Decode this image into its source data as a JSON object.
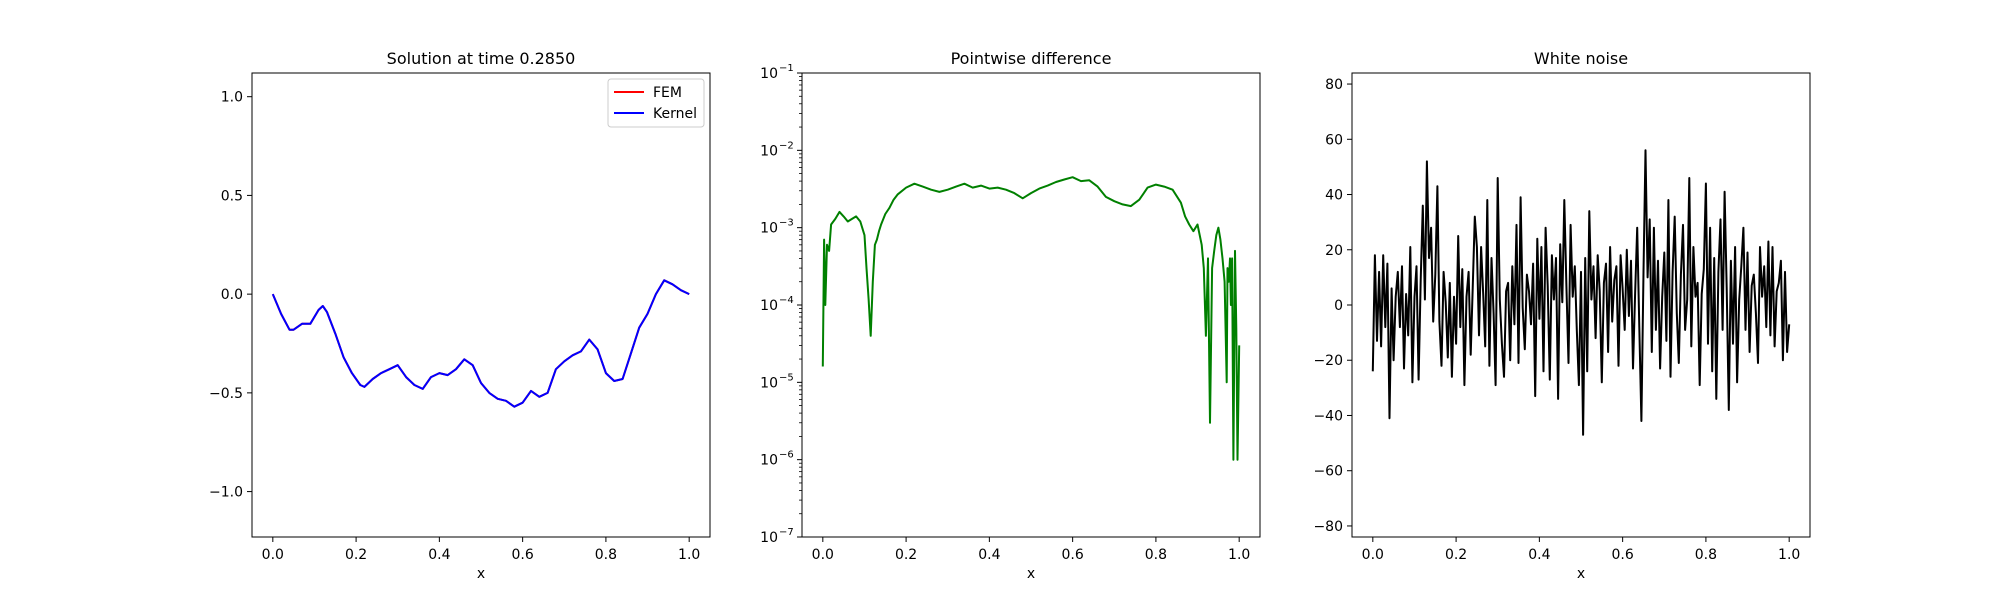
{
  "chart_data": [
    {
      "type": "line",
      "title": "Solution at time 0.2850",
      "xlabel": "x",
      "ylabel": "",
      "xlim": [
        -0.05,
        1.05
      ],
      "ylim": [
        -1.23,
        1.12
      ],
      "yscale": "linear",
      "xticks": [
        0.0,
        0.2,
        0.4,
        0.6,
        0.8,
        1.0
      ],
      "xtick_labels": [
        "0.0",
        "0.2",
        "0.4",
        "0.6",
        "0.8",
        "1.0"
      ],
      "yticks": [
        1.0,
        0.5,
        0.0,
        -0.5,
        -1.0
      ],
      "ytick_labels": [
        "1.0",
        "0.5",
        "0.0",
        "−0.5",
        "−1.0"
      ],
      "legend": "upper right",
      "grid": false,
      "series": [
        {
          "name": "FEM",
          "color": "#ff0000",
          "x": [
            0.0,
            0.02,
            0.04,
            0.05,
            0.07,
            0.09,
            0.11,
            0.12,
            0.13,
            0.15,
            0.17,
            0.19,
            0.21,
            0.22,
            0.24,
            0.26,
            0.28,
            0.3,
            0.32,
            0.34,
            0.36,
            0.38,
            0.4,
            0.42,
            0.44,
            0.46,
            0.48,
            0.5,
            0.52,
            0.54,
            0.56,
            0.58,
            0.6,
            0.62,
            0.64,
            0.66,
            0.68,
            0.7,
            0.72,
            0.74,
            0.76,
            0.78,
            0.8,
            0.82,
            0.84,
            0.86,
            0.88,
            0.9,
            0.92,
            0.94,
            0.96,
            0.98,
            1.0
          ],
          "y": [
            0.0,
            -0.1,
            -0.18,
            -0.18,
            -0.15,
            -0.15,
            -0.08,
            -0.06,
            -0.09,
            -0.2,
            -0.32,
            -0.4,
            -0.46,
            -0.47,
            -0.43,
            -0.4,
            -0.38,
            -0.36,
            -0.42,
            -0.46,
            -0.48,
            -0.42,
            -0.4,
            -0.41,
            -0.38,
            -0.33,
            -0.36,
            -0.45,
            -0.5,
            -0.53,
            -0.54,
            -0.57,
            -0.55,
            -0.49,
            -0.52,
            -0.5,
            -0.38,
            -0.34,
            -0.31,
            -0.29,
            -0.23,
            -0.28,
            -0.4,
            -0.44,
            -0.43,
            -0.3,
            -0.17,
            -0.1,
            0.0,
            0.07,
            0.05,
            0.02,
            0.0
          ]
        },
        {
          "name": "Kernel",
          "color": "#0000ff",
          "x": [
            0.0,
            0.02,
            0.04,
            0.05,
            0.07,
            0.09,
            0.11,
            0.12,
            0.13,
            0.15,
            0.17,
            0.19,
            0.21,
            0.22,
            0.24,
            0.26,
            0.28,
            0.3,
            0.32,
            0.34,
            0.36,
            0.38,
            0.4,
            0.42,
            0.44,
            0.46,
            0.48,
            0.5,
            0.52,
            0.54,
            0.56,
            0.58,
            0.6,
            0.62,
            0.64,
            0.66,
            0.68,
            0.7,
            0.72,
            0.74,
            0.76,
            0.78,
            0.8,
            0.82,
            0.84,
            0.86,
            0.88,
            0.9,
            0.92,
            0.94,
            0.96,
            0.98,
            1.0
          ],
          "y": [
            0.0,
            -0.1,
            -0.18,
            -0.18,
            -0.15,
            -0.15,
            -0.08,
            -0.06,
            -0.09,
            -0.2,
            -0.32,
            -0.4,
            -0.46,
            -0.47,
            -0.43,
            -0.4,
            -0.38,
            -0.36,
            -0.42,
            -0.46,
            -0.48,
            -0.42,
            -0.4,
            -0.41,
            -0.38,
            -0.33,
            -0.36,
            -0.45,
            -0.5,
            -0.53,
            -0.54,
            -0.57,
            -0.55,
            -0.49,
            -0.52,
            -0.5,
            -0.38,
            -0.34,
            -0.31,
            -0.29,
            -0.23,
            -0.28,
            -0.4,
            -0.44,
            -0.43,
            -0.3,
            -0.17,
            -0.1,
            0.0,
            0.07,
            0.05,
            0.02,
            0.0
          ]
        }
      ]
    },
    {
      "type": "line",
      "title": "Pointwise difference",
      "xlabel": "x",
      "ylabel": "",
      "xlim": [
        -0.05,
        1.05
      ],
      "ylim": [
        1e-07,
        0.1
      ],
      "yscale": "log",
      "xticks": [
        0.0,
        0.2,
        0.4,
        0.6,
        0.8,
        1.0
      ],
      "xtick_labels": [
        "0.0",
        "0.2",
        "0.4",
        "0.6",
        "0.8",
        "1.0"
      ],
      "ytick_exponents": [
        -1,
        -2,
        -3,
        -4,
        -5,
        -6,
        -7
      ],
      "ytick_base": "10",
      "grid": false,
      "series": [
        {
          "color": "#008000",
          "x": [
            0.0,
            0.003,
            0.006,
            0.01,
            0.015,
            0.02,
            0.03,
            0.04,
            0.05,
            0.06,
            0.07,
            0.08,
            0.09,
            0.1,
            0.105,
            0.11,
            0.115,
            0.12,
            0.125,
            0.13,
            0.135,
            0.14,
            0.15,
            0.16,
            0.17,
            0.18,
            0.2,
            0.22,
            0.24,
            0.26,
            0.28,
            0.3,
            0.32,
            0.34,
            0.36,
            0.38,
            0.4,
            0.42,
            0.44,
            0.46,
            0.48,
            0.5,
            0.52,
            0.54,
            0.56,
            0.58,
            0.6,
            0.62,
            0.64,
            0.66,
            0.68,
            0.7,
            0.72,
            0.74,
            0.76,
            0.78,
            0.8,
            0.82,
            0.84,
            0.86,
            0.87,
            0.88,
            0.89,
            0.9,
            0.91,
            0.915,
            0.92,
            0.925,
            0.93,
            0.935,
            0.94,
            0.945,
            0.95,
            0.955,
            0.96,
            0.965,
            0.97,
            0.972,
            0.975,
            0.978,
            0.98,
            0.983,
            0.986,
            0.99,
            0.993,
            0.996,
            1.0
          ],
          "y": [
            1.6e-05,
            0.0007,
            0.0001,
            0.0006,
            0.0005,
            0.0011,
            0.0013,
            0.0016,
            0.0014,
            0.0012,
            0.0013,
            0.0014,
            0.0012,
            0.0008,
            0.0003,
            0.00012,
            4e-05,
            0.0002,
            0.0006,
            0.0007,
            0.0009,
            0.0011,
            0.0015,
            0.0018,
            0.0023,
            0.0027,
            0.0033,
            0.0037,
            0.0034,
            0.0031,
            0.0029,
            0.0031,
            0.0034,
            0.0037,
            0.0033,
            0.0035,
            0.0032,
            0.0033,
            0.0031,
            0.0028,
            0.0024,
            0.0028,
            0.0032,
            0.0035,
            0.0039,
            0.0042,
            0.0045,
            0.004,
            0.0041,
            0.0034,
            0.0025,
            0.0022,
            0.002,
            0.0019,
            0.0023,
            0.0033,
            0.0036,
            0.0034,
            0.0031,
            0.0021,
            0.0014,
            0.0011,
            0.0009,
            0.0011,
            0.0006,
            0.0003,
            4e-05,
            0.0004,
            3e-06,
            0.0003,
            0.0005,
            0.0008,
            0.001,
            0.0007,
            0.0004,
            0.0002,
            1e-05,
            0.0003,
            0.0002,
            0.0004,
            0.0001,
            0.0004,
            1e-06,
            0.0005,
            5e-05,
            1e-06,
            3e-05
          ]
        }
      ]
    },
    {
      "type": "line",
      "title": "White noise",
      "xlabel": "x",
      "ylabel": "",
      "xlim": [
        -0.05,
        1.05
      ],
      "ylim": [
        -84,
        84
      ],
      "yscale": "linear",
      "xticks": [
        0.0,
        0.2,
        0.4,
        0.6,
        0.8,
        1.0
      ],
      "xtick_labels": [
        "0.0",
        "0.2",
        "0.4",
        "0.6",
        "0.8",
        "1.0"
      ],
      "yticks": [
        80,
        60,
        40,
        20,
        0,
        -20,
        -40,
        -60,
        -80
      ],
      "ytick_labels": [
        "80",
        "60",
        "40",
        "20",
        "0",
        "−20",
        "−40",
        "−60",
        "−80"
      ],
      "grid": false,
      "series": [
        {
          "color": "#000000",
          "x": [
            0.0,
            0.005,
            0.01,
            0.015,
            0.02,
            0.025,
            0.03,
            0.035,
            0.04,
            0.045,
            0.05,
            0.055,
            0.06,
            0.065,
            0.07,
            0.075,
            0.08,
            0.085,
            0.09,
            0.095,
            0.1,
            0.105,
            0.11,
            0.115,
            0.12,
            0.125,
            0.13,
            0.135,
            0.14,
            0.145,
            0.15,
            0.155,
            0.16,
            0.165,
            0.17,
            0.175,
            0.18,
            0.185,
            0.19,
            0.195,
            0.2,
            0.205,
            0.21,
            0.215,
            0.22,
            0.225,
            0.23,
            0.235,
            0.24,
            0.245,
            0.25,
            0.255,
            0.26,
            0.265,
            0.27,
            0.275,
            0.28,
            0.285,
            0.29,
            0.295,
            0.3,
            0.305,
            0.31,
            0.315,
            0.32,
            0.325,
            0.33,
            0.335,
            0.34,
            0.345,
            0.35,
            0.355,
            0.36,
            0.365,
            0.37,
            0.375,
            0.38,
            0.385,
            0.39,
            0.395,
            0.4,
            0.405,
            0.41,
            0.415,
            0.42,
            0.425,
            0.43,
            0.435,
            0.44,
            0.445,
            0.45,
            0.455,
            0.46,
            0.465,
            0.47,
            0.475,
            0.48,
            0.485,
            0.49,
            0.495,
            0.5,
            0.505,
            0.51,
            0.515,
            0.52,
            0.525,
            0.53,
            0.535,
            0.54,
            0.545,
            0.55,
            0.555,
            0.56,
            0.565,
            0.57,
            0.575,
            0.58,
            0.585,
            0.59,
            0.595,
            0.6,
            0.605,
            0.61,
            0.615,
            0.62,
            0.625,
            0.63,
            0.635,
            0.64,
            0.645,
            0.65,
            0.655,
            0.66,
            0.665,
            0.67,
            0.675,
            0.68,
            0.685,
            0.69,
            0.695,
            0.7,
            0.705,
            0.71,
            0.715,
            0.72,
            0.725,
            0.73,
            0.735,
            0.74,
            0.745,
            0.75,
            0.755,
            0.76,
            0.765,
            0.77,
            0.775,
            0.78,
            0.785,
            0.79,
            0.795,
            0.8,
            0.805,
            0.81,
            0.815,
            0.82,
            0.825,
            0.83,
            0.835,
            0.84,
            0.845,
            0.85,
            0.855,
            0.86,
            0.865,
            0.87,
            0.875,
            0.88,
            0.885,
            0.89,
            0.895,
            0.9,
            0.905,
            0.91,
            0.915,
            0.92,
            0.925,
            0.93,
            0.935,
            0.94,
            0.945,
            0.95,
            0.955,
            0.96,
            0.965,
            0.97,
            0.975,
            0.98,
            0.985,
            0.99,
            0.995,
            1.0
          ],
          "y": [
            -24,
            18,
            -13,
            12,
            -15,
            18,
            -8,
            15,
            -41,
            6,
            -20,
            3,
            12,
            -8,
            14,
            -23,
            4,
            -11,
            21,
            -28,
            3,
            14,
            -27,
            9,
            36,
            2,
            52,
            17,
            28,
            -6,
            11,
            43,
            -6,
            -22,
            12,
            1,
            -19,
            8,
            -26,
            3,
            -14,
            25,
            -8,
            13,
            -29,
            3,
            12,
            -18,
            6,
            32,
            21,
            -11,
            21,
            4,
            -15,
            38,
            -22,
            17,
            -3,
            -29,
            46,
            2,
            -14,
            -26,
            5,
            8,
            -20,
            14,
            -7,
            29,
            -21,
            39,
            -1,
            -16,
            11,
            5,
            -7,
            15,
            -33,
            24,
            -5,
            21,
            -24,
            28,
            7,
            -27,
            18,
            2,
            17,
            -34,
            22,
            1,
            38,
            7,
            -21,
            29,
            3,
            14,
            -9,
            -29,
            12,
            -47,
            17,
            -24,
            34,
            2,
            14,
            -12,
            18,
            5,
            -28,
            8,
            15,
            -17,
            21,
            -6,
            9,
            14,
            -22,
            18,
            6,
            -9,
            20,
            -4,
            16,
            -23,
            4,
            28,
            -8,
            -42,
            12,
            56,
            10,
            31,
            -17,
            28,
            -9,
            16,
            -23,
            3,
            19,
            -13,
            38,
            -26,
            12,
            32,
            -3,
            -21,
            11,
            29,
            -9,
            2,
            46,
            -15,
            21,
            3,
            8,
            -29,
            4,
            13,
            44,
            -14,
            28,
            -24,
            17,
            -34,
            12,
            31,
            -9,
            41,
            6,
            -38,
            16,
            -14,
            21,
            -28,
            2,
            14,
            28,
            -9,
            19,
            -17,
            7,
            11,
            -3,
            -21,
            21,
            3,
            14,
            -8,
            23,
            -11,
            21,
            -15,
            5,
            8,
            16,
            -20,
            12,
            -17,
            -7
          ]
        }
      ]
    }
  ]
}
